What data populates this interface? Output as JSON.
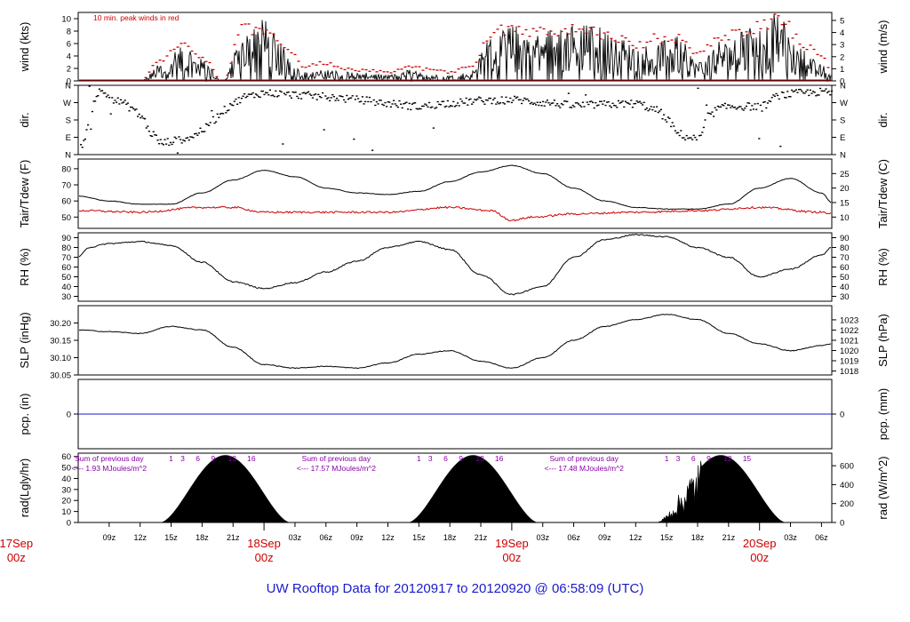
{
  "title": "UW Rooftop Data for 20120917  to  20120920 @ 06:58:09  (UTC)",
  "wind_note": "10 min. peak winds in red",
  "time_axis": {
    "start_hour": 6,
    "end_hour": 79,
    "hour_ticks": [
      {
        "h": 9,
        "label": "09z"
      },
      {
        "h": 12,
        "label": "12z"
      },
      {
        "h": 15,
        "label": "15z"
      },
      {
        "h": 18,
        "label": "18z"
      },
      {
        "h": 21,
        "label": "21z"
      },
      {
        "h": 27,
        "label": "03z"
      },
      {
        "h": 30,
        "label": "06z"
      },
      {
        "h": 33,
        "label": "09z"
      },
      {
        "h": 36,
        "label": "12z"
      },
      {
        "h": 39,
        "label": "15z"
      },
      {
        "h": 42,
        "label": "18z"
      },
      {
        "h": 45,
        "label": "21z"
      },
      {
        "h": 51,
        "label": "03z"
      },
      {
        "h": 54,
        "label": "06z"
      },
      {
        "h": 57,
        "label": "09z"
      },
      {
        "h": 60,
        "label": "12z"
      },
      {
        "h": 63,
        "label": "15z"
      },
      {
        "h": 66,
        "label": "18z"
      },
      {
        "h": 69,
        "label": "21z"
      },
      {
        "h": 75,
        "label": "03z"
      },
      {
        "h": 78,
        "label": "06z"
      }
    ],
    "day_labels": [
      {
        "h": 0,
        "date": "17Sep",
        "time": "00z"
      },
      {
        "h": 24,
        "date": "18Sep",
        "time": "00z"
      },
      {
        "h": 48,
        "date": "19Sep",
        "time": "00z"
      },
      {
        "h": 72,
        "date": "20Sep",
        "time": "00z"
      }
    ]
  },
  "colors": {
    "black": "#000000",
    "red": "#cc0000",
    "blue": "#1a1acc",
    "purple": "#8800aa"
  },
  "chart_data": [
    {
      "type": "line",
      "name": "wind",
      "ylabel_left": "wind (kts)",
      "ylabel_right": "wind (m/s)",
      "ylim": [
        0,
        11
      ],
      "left_ticks": [
        0,
        2,
        4,
        6,
        8,
        10
      ],
      "right_ticks": [
        0,
        1,
        2,
        3,
        4,
        5
      ],
      "series_approx": {
        "x": [
          6,
          12,
          14,
          16,
          18,
          20,
          22,
          24,
          26,
          28,
          30,
          32,
          34,
          36,
          38,
          40,
          42,
          44,
          46,
          48,
          50,
          52,
          54,
          56,
          58,
          60,
          62,
          64,
          66,
          68,
          70,
          72,
          74,
          76,
          78,
          79
        ],
        "mean": [
          0,
          0,
          1.5,
          3.0,
          2.0,
          0,
          4.5,
          5.5,
          3.0,
          0.8,
          1.0,
          0.8,
          0.8,
          0.5,
          1.0,
          0.6,
          0.5,
          0.8,
          4.0,
          5.0,
          5.2,
          4.8,
          5.0,
          5.2,
          4.0,
          3.5,
          3.5,
          4.0,
          2.0,
          3.5,
          4.5,
          5.0,
          6.5,
          3.0,
          1.5,
          0.5
        ],
        "peak": [
          0,
          0,
          3.5,
          6.0,
          4.0,
          0,
          8.8,
          8.5,
          6.0,
          2.5,
          3.0,
          2.0,
          1.8,
          1.5,
          2.5,
          2.0,
          1.5,
          2.5,
          7.5,
          9.0,
          8.0,
          8.0,
          8.5,
          8.0,
          7.5,
          6.0,
          7.0,
          7.0,
          4.5,
          6.5,
          8.0,
          9.0,
          10.5,
          6.5,
          4.0,
          2.0
        ]
      }
    },
    {
      "type": "scatter",
      "name": "wind direction",
      "ylabel_left": "dir.",
      "ylabel_right": "dir.",
      "categories": [
        "N",
        "E",
        "S",
        "W",
        "N"
      ],
      "ylim": [
        0,
        360
      ],
      "series_approx": {
        "x": [
          6,
          8,
          10,
          11,
          12,
          13,
          14,
          15,
          16,
          17,
          18,
          19,
          20,
          21,
          22,
          24,
          27,
          30,
          33,
          36,
          39,
          42,
          45,
          48,
          51,
          54,
          57,
          60,
          62,
          63,
          64,
          65,
          66,
          67,
          68,
          69,
          70,
          72,
          74,
          76,
          78,
          79
        ],
        "deg": [
          40,
          325,
          275,
          245,
          200,
          110,
          60,
          70,
          80,
          95,
          130,
          180,
          230,
          270,
          300,
          320,
          310,
          300,
          285,
          265,
          250,
          268,
          280,
          285,
          270,
          255,
          260,
          265,
          230,
          180,
          110,
          90,
          80,
          200,
          240,
          250,
          250,
          250,
          310,
          320,
          325,
          320
        ]
      }
    },
    {
      "type": "line",
      "name": "temperature",
      "ylabel_left": "Tair/Tdew (F)",
      "ylabel_right": "Tair/Tdew (C)",
      "ylim": [
        43,
        86
      ],
      "left_ticks": [
        50,
        60,
        70,
        80
      ],
      "right_ticks": [
        10,
        15,
        20,
        25
      ],
      "series": [
        {
          "name": "Tair",
          "x": [
            6,
            9,
            12,
            15,
            18,
            21,
            24,
            27,
            30,
            33,
            36,
            39,
            42,
            45,
            48,
            51,
            54,
            57,
            60,
            63,
            66,
            69,
            72,
            75,
            78,
            79
          ],
          "values": [
            63,
            60,
            58,
            58,
            65,
            73,
            79,
            75,
            68,
            65,
            64,
            66,
            72,
            78,
            82,
            77,
            68,
            60,
            56,
            55,
            55,
            58,
            68,
            74,
            65,
            59
          ]
        },
        {
          "name": "Tdew",
          "x": [
            6,
            12,
            18,
            21,
            24,
            30,
            36,
            42,
            46,
            48,
            50,
            54,
            60,
            66,
            72,
            78,
            79
          ],
          "values": [
            54,
            53,
            56,
            56,
            53,
            53,
            53,
            56,
            54,
            48,
            50,
            52,
            53,
            54,
            56,
            53,
            52
          ]
        }
      ]
    },
    {
      "type": "line",
      "name": "relative humidity",
      "ylabel_left": "RH (%)",
      "ylabel_right": "RH (%)",
      "ylim": [
        25,
        95
      ],
      "left_ticks": [
        30,
        40,
        50,
        60,
        70,
        80,
        90
      ],
      "right_ticks": [
        30,
        40,
        50,
        60,
        70,
        80,
        90
      ],
      "series": [
        {
          "name": "RH",
          "x": [
            6,
            7,
            9,
            12,
            15,
            18,
            21,
            24,
            27,
            30,
            33,
            36,
            39,
            42,
            45,
            48,
            51,
            54,
            57,
            60,
            63,
            66,
            69,
            72,
            75,
            78,
            79
          ],
          "values": [
            70,
            80,
            84,
            86,
            82,
            65,
            45,
            38,
            44,
            55,
            66,
            80,
            86,
            78,
            52,
            32,
            40,
            70,
            88,
            93,
            91,
            80,
            70,
            50,
            58,
            72,
            80
          ]
        }
      ]
    },
    {
      "type": "line",
      "name": "sea level pressure",
      "ylabel_left": "SLP (inHg)",
      "ylabel_right": "SLP (hPa)",
      "ylim": [
        30.05,
        30.25
      ],
      "left_ticks": [
        30.05,
        30.1,
        30.15,
        30.2
      ],
      "right_ticks": [
        1018,
        1019,
        1020,
        1021,
        1022,
        1023
      ],
      "left_tick_labels": [
        "30.05",
        "30.10",
        "30.15",
        "30.20"
      ],
      "series": [
        {
          "name": "SLP",
          "x": [
            6,
            9,
            12,
            15,
            18,
            21,
            24,
            27,
            30,
            33,
            36,
            39,
            42,
            45,
            48,
            51,
            54,
            57,
            60,
            63,
            66,
            69,
            72,
            75,
            78,
            79
          ],
          "values": [
            30.18,
            30.175,
            30.17,
            30.19,
            30.18,
            30.13,
            30.08,
            30.07,
            30.075,
            30.07,
            30.085,
            30.11,
            30.12,
            30.09,
            30.07,
            30.1,
            30.15,
            30.19,
            30.21,
            30.225,
            30.21,
            30.17,
            30.14,
            30.12,
            30.135,
            30.14
          ]
        }
      ]
    },
    {
      "type": "line",
      "name": "precipitation",
      "ylabel_left": "pcp. (in)",
      "ylabel_right": "pcp. (mm)",
      "ylim": [
        -1,
        1
      ],
      "left_ticks": [
        0
      ],
      "right_ticks": [
        0
      ],
      "series": [
        {
          "name": "pcp",
          "x": [
            6,
            79
          ],
          "values": [
            0,
            0
          ]
        }
      ]
    },
    {
      "type": "area",
      "name": "solar radiation",
      "ylabel_left": "rad(Lgly/hr)",
      "ylabel_right": "rad (W/m^2)",
      "ylim": [
        0,
        63
      ],
      "left_ticks": [
        0,
        10,
        20,
        30,
        40,
        50,
        60
      ],
      "right_ticks": [
        0,
        200,
        400,
        600
      ],
      "daily_peak": [
        {
          "center": 20,
          "start": 14,
          "end": 26.5,
          "peak": 61
        },
        {
          "center": 44,
          "start": 38,
          "end": 50.5,
          "peak": 61
        },
        {
          "center": 68,
          "start": 62,
          "end": 74.5,
          "peak": 61
        }
      ],
      "annotations": [
        {
          "h": 9,
          "line1": "Sum of previous day",
          "line2": "<--- 1.93 MJoules/m^2"
        },
        {
          "h": 31,
          "line1": "Sum of previous day",
          "line2": "<--- 17.57 MJoules/m^2"
        },
        {
          "h": 55,
          "line1": "Sum of previous day",
          "line2": "<--- 17.48 MJoules/m^2"
        }
      ],
      "hour_marks": [
        {
          "h": 15,
          "labels": [
            "1",
            "3",
            "6",
            "9",
            "13",
            "16"
          ]
        },
        {
          "h": 39,
          "labels": [
            "1",
            "3",
            "6",
            "9",
            "13",
            "16"
          ]
        },
        {
          "h": 63,
          "labels": [
            "1",
            "3",
            "6",
            "9",
            "12",
            "15"
          ]
        }
      ]
    }
  ]
}
